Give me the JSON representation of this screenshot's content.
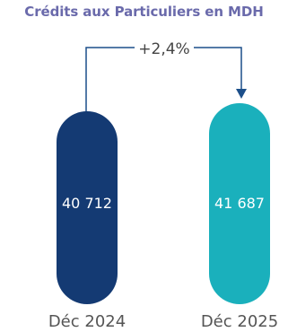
{
  "colors": {
    "title": "#6a6aab",
    "bar_2024": "#143a73",
    "bar_2025": "#1ab0bc",
    "connector": "#1c4f8a",
    "label": "#555555",
    "growth": "#444444"
  },
  "chart_data": {
    "type": "bar",
    "title": "Crédits aux Particuliers en MDH",
    "categories": [
      "Déc 2024",
      "Déc 2025"
    ],
    "values": [
      40712,
      41687
    ],
    "value_labels": [
      "40 712",
      "41 687"
    ],
    "growth_label": "+2,4%",
    "grid": false,
    "legend": "none"
  }
}
